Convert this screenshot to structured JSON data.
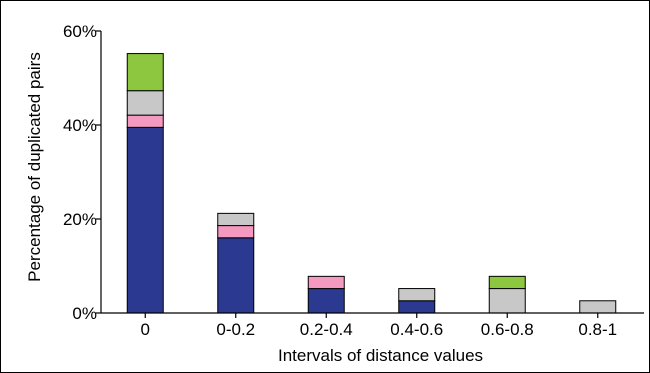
{
  "chart_data": {
    "type": "bar",
    "stacked": true,
    "title": "",
    "xlabel": "Intervals of distance values",
    "ylabel": "Percentage of duplicated pairs",
    "ylim": [
      0,
      60
    ],
    "yticks": [
      0,
      20,
      40,
      60
    ],
    "ytick_labels": [
      "0%",
      "20%",
      "40%",
      "60%"
    ],
    "grid": false,
    "legend": "none",
    "categories": [
      "0",
      "0-0.2",
      "0.2-0.4",
      "0.4-0.6",
      "0.6-0.8",
      "0.8-1"
    ],
    "series": [
      {
        "color": "#2b3990",
        "values": [
          39.5,
          16,
          5.2,
          2.6,
          0,
          0
        ]
      },
      {
        "color": "#f49ac1",
        "values": [
          2.6,
          2.6,
          2.6,
          0,
          0,
          0
        ]
      },
      {
        "color": "#c8c8c8",
        "values": [
          5.2,
          2.6,
          0,
          2.6,
          5.2,
          2.6
        ]
      },
      {
        "color": "#8dc63f",
        "values": [
          7.9,
          0,
          0,
          0,
          2.6,
          0
        ]
      }
    ]
  }
}
